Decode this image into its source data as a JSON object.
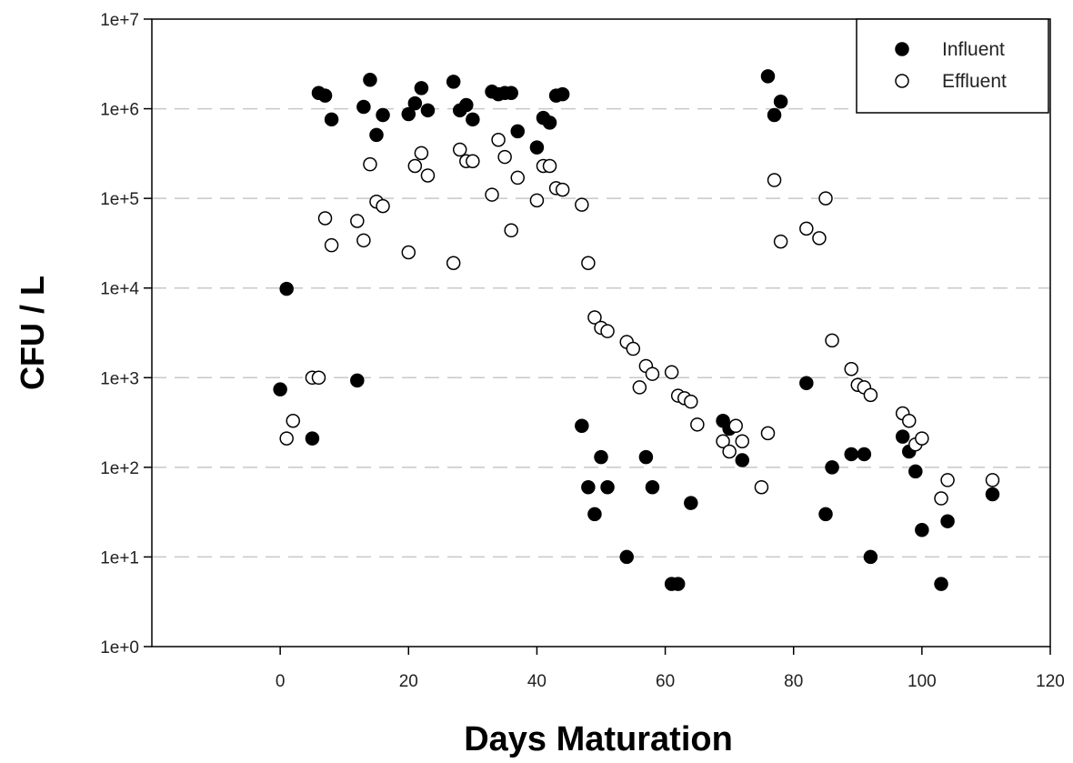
{
  "chart_data": {
    "type": "scatter",
    "title": "",
    "xlabel": "Days Maturation",
    "ylabel": "CFU / L",
    "xlim": [
      -20,
      120
    ],
    "ylim": [
      1,
      10000000
    ],
    "yscale": "log",
    "x_ticks": [
      0,
      20,
      40,
      60,
      80,
      100,
      120
    ],
    "x_tick_labels": [
      "0",
      "20",
      "40",
      "60",
      "80",
      "100",
      "120"
    ],
    "y_ticks": [
      1,
      10,
      100,
      1000,
      10000,
      100000,
      1000000,
      10000000
    ],
    "y_tick_labels": [
      "1e+0",
      "1e+1",
      "1e+2",
      "1e+3",
      "1e+4",
      "1e+5",
      "1e+6",
      "1e+7"
    ],
    "grid": "horizontal dashed at major y ticks",
    "legend_position": "top-right",
    "series": [
      {
        "name": "Influent",
        "marker": "filled-circle",
        "color": "#000000",
        "points": [
          [
            0,
            740
          ],
          [
            1,
            9800
          ],
          [
            5,
            210
          ],
          [
            6,
            1500000
          ],
          [
            7,
            1400000
          ],
          [
            8,
            760000
          ],
          [
            12,
            930
          ],
          [
            13,
            1050000
          ],
          [
            14,
            2100000
          ],
          [
            15,
            510000
          ],
          [
            16,
            850000
          ],
          [
            20,
            870000
          ],
          [
            21,
            1150000
          ],
          [
            22,
            1700000
          ],
          [
            23,
            960000
          ],
          [
            27,
            2000000
          ],
          [
            28,
            960000
          ],
          [
            29,
            1100000
          ],
          [
            30,
            760000
          ],
          [
            33,
            1550000
          ],
          [
            34,
            1450000
          ],
          [
            35,
            1500000
          ],
          [
            36,
            1500000
          ],
          [
            37,
            560000
          ],
          [
            40,
            370000
          ],
          [
            41,
            790000
          ],
          [
            42,
            700000
          ],
          [
            43,
            1400000
          ],
          [
            44,
            1450000
          ],
          [
            47,
            290
          ],
          [
            48,
            60
          ],
          [
            49,
            30
          ],
          [
            50,
            130
          ],
          [
            51,
            60
          ],
          [
            54,
            10
          ],
          [
            57,
            130
          ],
          [
            58,
            60
          ],
          [
            61,
            5
          ],
          [
            62,
            5
          ],
          [
            64,
            40
          ],
          [
            69,
            330
          ],
          [
            70,
            270
          ],
          [
            72,
            120
          ],
          [
            76,
            2300000
          ],
          [
            77,
            850000
          ],
          [
            78,
            1200000
          ],
          [
            82,
            870
          ],
          [
            85,
            30
          ],
          [
            86,
            100
          ],
          [
            89,
            140
          ],
          [
            91,
            140
          ],
          [
            92,
            10
          ],
          [
            97,
            220
          ],
          [
            98,
            150
          ],
          [
            99,
            90
          ],
          [
            100,
            20
          ],
          [
            103,
            5
          ],
          [
            104,
            25
          ],
          [
            111,
            50
          ]
        ]
      },
      {
        "name": "Effluent",
        "marker": "open-circle",
        "color": "#000000",
        "points": [
          [
            1,
            210
          ],
          [
            2,
            330
          ],
          [
            5,
            1000
          ],
          [
            6,
            1000
          ],
          [
            7,
            60000
          ],
          [
            8,
            30000
          ],
          [
            12,
            56000
          ],
          [
            13,
            34000
          ],
          [
            14,
            240000
          ],
          [
            15,
            92000
          ],
          [
            16,
            82000
          ],
          [
            20,
            25000
          ],
          [
            21,
            230000
          ],
          [
            22,
            320000
          ],
          [
            23,
            180000
          ],
          [
            27,
            19000
          ],
          [
            28,
            350000
          ],
          [
            29,
            260000
          ],
          [
            30,
            260000
          ],
          [
            33,
            110000
          ],
          [
            34,
            450000
          ],
          [
            35,
            290000
          ],
          [
            36,
            44000
          ],
          [
            37,
            170000
          ],
          [
            40,
            95000
          ],
          [
            41,
            230000
          ],
          [
            42,
            230000
          ],
          [
            43,
            130000
          ],
          [
            44,
            125000
          ],
          [
            47,
            85000
          ],
          [
            48,
            19000
          ],
          [
            49,
            4700
          ],
          [
            50,
            3600
          ],
          [
            51,
            3300
          ],
          [
            54,
            2500
          ],
          [
            55,
            2100
          ],
          [
            56,
            780
          ],
          [
            57,
            1350
          ],
          [
            58,
            1100
          ],
          [
            61,
            1150
          ],
          [
            62,
            630
          ],
          [
            63,
            590
          ],
          [
            64,
            540
          ],
          [
            65,
            300
          ],
          [
            69,
            195
          ],
          [
            70,
            150
          ],
          [
            71,
            290
          ],
          [
            72,
            195
          ],
          [
            75,
            60
          ],
          [
            76,
            240
          ],
          [
            77,
            160000
          ],
          [
            78,
            33000
          ],
          [
            82,
            46000
          ],
          [
            84,
            36000
          ],
          [
            85,
            100000
          ],
          [
            86,
            2600
          ],
          [
            89,
            1250
          ],
          [
            90,
            830
          ],
          [
            91,
            780
          ],
          [
            92,
            640
          ],
          [
            97,
            400
          ],
          [
            98,
            330
          ],
          [
            99,
            180
          ],
          [
            100,
            210
          ],
          [
            103,
            45
          ],
          [
            104,
            72
          ],
          [
            111,
            72
          ]
        ]
      }
    ]
  }
}
